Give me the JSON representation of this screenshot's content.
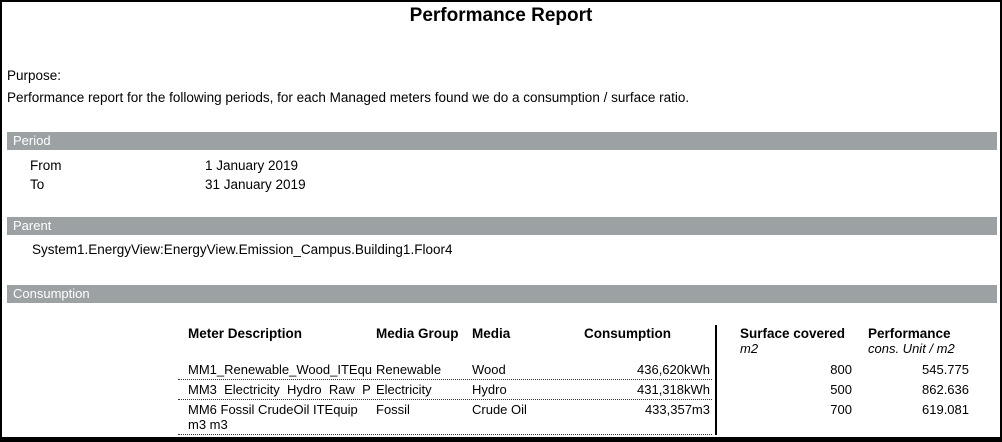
{
  "title": "Performance Report",
  "purpose": {
    "label": "Purpose:",
    "text": "Performance report for the following periods, for each Managed meters found we do a consumption / surface ratio."
  },
  "period": {
    "heading": "Period",
    "from_label": "From",
    "from_value": "1 January 2019",
    "to_label": "To",
    "to_value": "31 January 2019"
  },
  "parent": {
    "heading": "Parent",
    "path": "System1.EnergyView:EnergyView.Emission_Campus.Building1.Floor4"
  },
  "consumption": {
    "heading": "Consumption",
    "columns": {
      "meter": "Meter Description",
      "media_group": "Media Group",
      "media": "Media",
      "consumption": "Consumption",
      "surface": "Surface covered",
      "surface_unit": "m2",
      "performance": "Performance",
      "performance_unit": "cons. Unit / m2"
    },
    "rows": [
      {
        "meter": "MM1_Renewable_Wood_ITEqu",
        "media_group": "Renewable",
        "media": "Wood",
        "consumption": "436,620kWh",
        "surface": "800",
        "performance": "545.775"
      },
      {
        "meter": "MM3  Electricity  Hydro  Raw  P",
        "media_group": "Electricity",
        "media": "Hydro",
        "consumption": "431,318kWh",
        "surface": "500",
        "performance": "862.636"
      },
      {
        "meter": "MM6 Fossil CrudeOil ITEquip m3 m3",
        "media_group": "Fossil",
        "media": "Crude Oil",
        "consumption": "433,357m3",
        "surface": "700",
        "performance": "619.081"
      }
    ]
  },
  "colors": {
    "section_bar": "#9ca1a4",
    "border": "#000000",
    "text": "#000000"
  }
}
